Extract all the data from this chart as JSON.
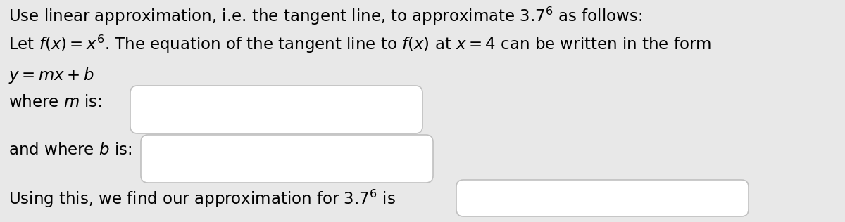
{
  "background_color": "#e8e8e8",
  "text_color": "#000000",
  "box_color": "#ffffff",
  "box_edge_color": "#c0c0c0",
  "line1": "Use linear approximation, i.e. the tangent line, to approximate $3.7^6$ as follows:",
  "line2": "Let $f(x) = x^6$. The equation of the tangent line to $f(x)$ at $x = 4$ can be written in the form",
  "line3": "$y = mx + b$",
  "line4_prefix": "where $m$ is:",
  "line5_prefix": "and where $b$ is:",
  "line6_prefix": "Using this, we find our approximation for $3.7^6$ is",
  "font_size": 16.5,
  "figwidth": 12.0,
  "figheight": 3.16,
  "dpi": 100
}
